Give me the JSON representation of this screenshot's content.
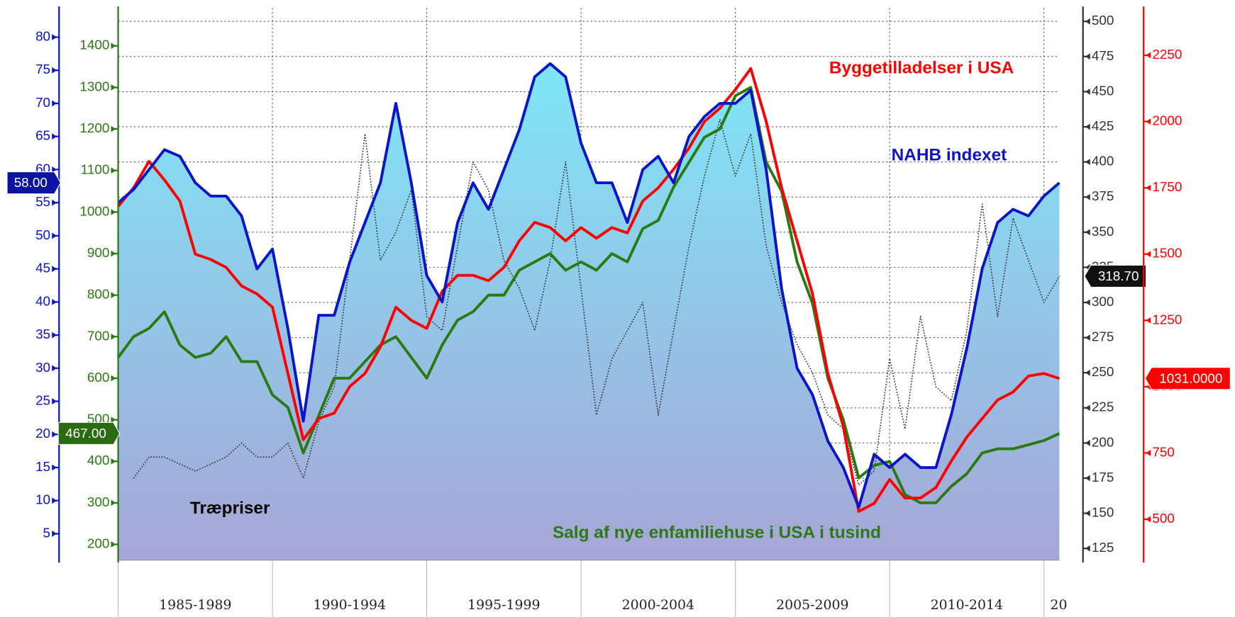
{
  "chart_data": {
    "type": "line",
    "x": [
      1985,
      1985.5,
      1986,
      1986.5,
      1987,
      1987.5,
      1988,
      1988.5,
      1989,
      1989.5,
      1990,
      1990.5,
      1991,
      1991.5,
      1992,
      1992.5,
      1993,
      1993.5,
      1994,
      1994.5,
      1995,
      1995.5,
      1996,
      1996.5,
      1997,
      1997.5,
      1998,
      1998.5,
      1999,
      1999.5,
      2000,
      2000.5,
      2001,
      2001.5,
      2002,
      2002.5,
      2003,
      2003.5,
      2004,
      2004.5,
      2005,
      2005.5,
      2006,
      2006.5,
      2007,
      2007.5,
      2008,
      2008.5,
      2009,
      2009.5,
      2010,
      2010.5,
      2011,
      2011.5,
      2012,
      2012.5,
      2013,
      2013.5,
      2014,
      2014.5,
      2015,
      2015.5
    ],
    "xlim": [
      1985,
      2015.5
    ],
    "xticks": [
      {
        "value": 1985,
        "label": "1985-1989"
      },
      {
        "value": 1990,
        "label": "1990-1994"
      },
      {
        "value": 1995,
        "label": "1995-1999"
      },
      {
        "value": 2000,
        "label": "2000-2004"
      },
      {
        "value": 2005,
        "label": "2005-2009"
      },
      {
        "value": 2010,
        "label": "2010-2014"
      },
      {
        "value": 2015,
        "label": "20"
      }
    ],
    "grid": true,
    "series": [
      {
        "name": "NAHB indexet",
        "color": "#0a14c8",
        "fill": true,
        "dash": "solid",
        "current_label": "58.00",
        "ylim": [
          1,
          84.4
        ],
        "yticks": [
          5,
          10,
          15,
          20,
          25,
          30,
          35,
          40,
          45,
          50,
          55,
          60,
          65,
          70,
          75,
          80
        ],
        "values": [
          55,
          57,
          60,
          63,
          62,
          58,
          56,
          56,
          53,
          45,
          48,
          36,
          22,
          38,
          38,
          46,
          52,
          58,
          70,
          58,
          44,
          40,
          52,
          58,
          54,
          60,
          66,
          74,
          76,
          74,
          64,
          58,
          58,
          52,
          60,
          62,
          58,
          65,
          68,
          70,
          70,
          72,
          60,
          42,
          30,
          26,
          19,
          15,
          9,
          17,
          15,
          17,
          15,
          15,
          23,
          33,
          45,
          52,
          54,
          53,
          56,
          58
        ]
      },
      {
        "name": "Salg af nye enfamiliehuse i USA i tusind",
        "color": "#2a7a12",
        "fill": false,
        "dash": "solid",
        "current_label": "467.00",
        "ylim": [
          162,
          1491
        ],
        "yticks": [
          200,
          300,
          400,
          500,
          600,
          700,
          800,
          900,
          1000,
          1100,
          1200,
          1300,
          1400
        ],
        "values": [
          650,
          700,
          720,
          760,
          680,
          650,
          660,
          700,
          640,
          640,
          560,
          530,
          420,
          510,
          600,
          600,
          640,
          680,
          700,
          650,
          600,
          680,
          740,
          760,
          800,
          800,
          860,
          880,
          900,
          860,
          880,
          860,
          900,
          880,
          960,
          980,
          1060,
          1120,
          1180,
          1200,
          1280,
          1300,
          1120,
          1050,
          880,
          780,
          600,
          500,
          360,
          390,
          400,
          320,
          300,
          300,
          340,
          370,
          420,
          430,
          430,
          440,
          450,
          467
        ]
      },
      {
        "name": "Træpriser",
        "color": "#333333",
        "fill": false,
        "dash": "dotted",
        "current_label": "318.70",
        "ylim": [
          116.6,
          509.5
        ],
        "yticks": [
          125,
          150,
          175,
          200,
          225,
          250,
          275,
          300,
          325,
          350,
          375,
          400,
          425,
          450,
          475,
          500
        ],
        "values": [
          null,
          175,
          190,
          190,
          185,
          180,
          185,
          190,
          200,
          190,
          190,
          200,
          175,
          215,
          240,
          330,
          420,
          330,
          350,
          380,
          290,
          280,
          340,
          400,
          380,
          330,
          310,
          280,
          330,
          400,
          310,
          220,
          260,
          280,
          300,
          220,
          280,
          340,
          390,
          430,
          390,
          420,
          340,
          300,
          270,
          250,
          220,
          210,
          170,
          180,
          260,
          210,
          290,
          240,
          230,
          280,
          370,
          290,
          360,
          330,
          300,
          318.7
        ]
      },
      {
        "name": "Byggetilladelser i USA",
        "color": "#ff0000",
        "fill": false,
        "dash": "solid",
        "current_label": "1031.0000",
        "ylim": [
          345.7,
          2428
        ],
        "yticks": [
          500,
          750,
          1000,
          1250,
          1500,
          1750,
          2000,
          2250
        ],
        "values": [
          1680,
          1750,
          1850,
          1780,
          1700,
          1500,
          1480,
          1450,
          1380,
          1350,
          1300,
          1050,
          800,
          880,
          900,
          1000,
          1050,
          1150,
          1300,
          1250,
          1220,
          1360,
          1420,
          1420,
          1400,
          1450,
          1550,
          1620,
          1600,
          1550,
          1600,
          1560,
          1600,
          1580,
          1700,
          1750,
          1820,
          1900,
          2000,
          2050,
          2120,
          2200,
          2000,
          1750,
          1550,
          1350,
          1050,
          850,
          530,
          560,
          650,
          580,
          580,
          620,
          720,
          810,
          880,
          950,
          980,
          1040,
          1050,
          1031
        ]
      }
    ]
  }
}
